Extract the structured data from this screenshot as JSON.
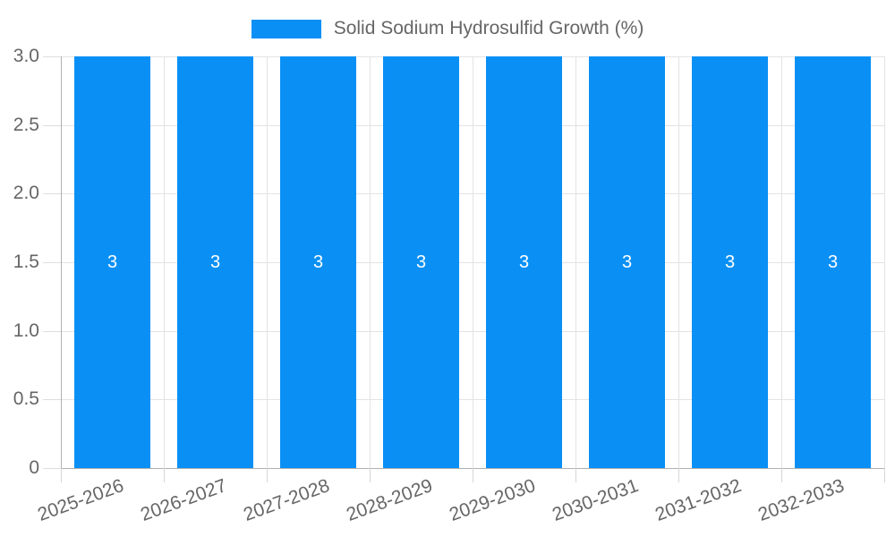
{
  "legend": {
    "label": "Solid Sodium Hydrosulfid Growth (%)"
  },
  "chart_data": {
    "type": "bar",
    "title": "Solid Sodium Hydrosulfid Growth (%)",
    "categories": [
      "2025-2026",
      "2026-2027",
      "2027-2028",
      "2028-2029",
      "2029-2030",
      "2030-2031",
      "2031-2032",
      "2032-2033"
    ],
    "series": [
      {
        "name": "Solid Sodium Hydrosulfid Growth (%)",
        "values": [
          3,
          3,
          3,
          3,
          3,
          3,
          3,
          3
        ],
        "data_labels": [
          "3",
          "3",
          "3",
          "3",
          "3",
          "3",
          "3",
          "3"
        ]
      }
    ],
    "xlabel": "",
    "ylabel": "",
    "ylim": [
      0,
      3
    ],
    "ytick_labels": [
      "3.0",
      "2.5",
      "2.0",
      "1.5",
      "1.0",
      "0.5",
      "0"
    ],
    "ytick_values": [
      3,
      2.5,
      2,
      1.5,
      1,
      0.5,
      0
    ],
    "grid": "on",
    "legend_position": "top",
    "x_label_rotation_deg": -20
  },
  "colors": {
    "bar": "#0a90f5",
    "grid": "#e3e3e3",
    "axis_border": "#b0b0b0",
    "tick_text": "#666666",
    "legend_text": "#666666",
    "bar_label_text": "#ffffff"
  }
}
